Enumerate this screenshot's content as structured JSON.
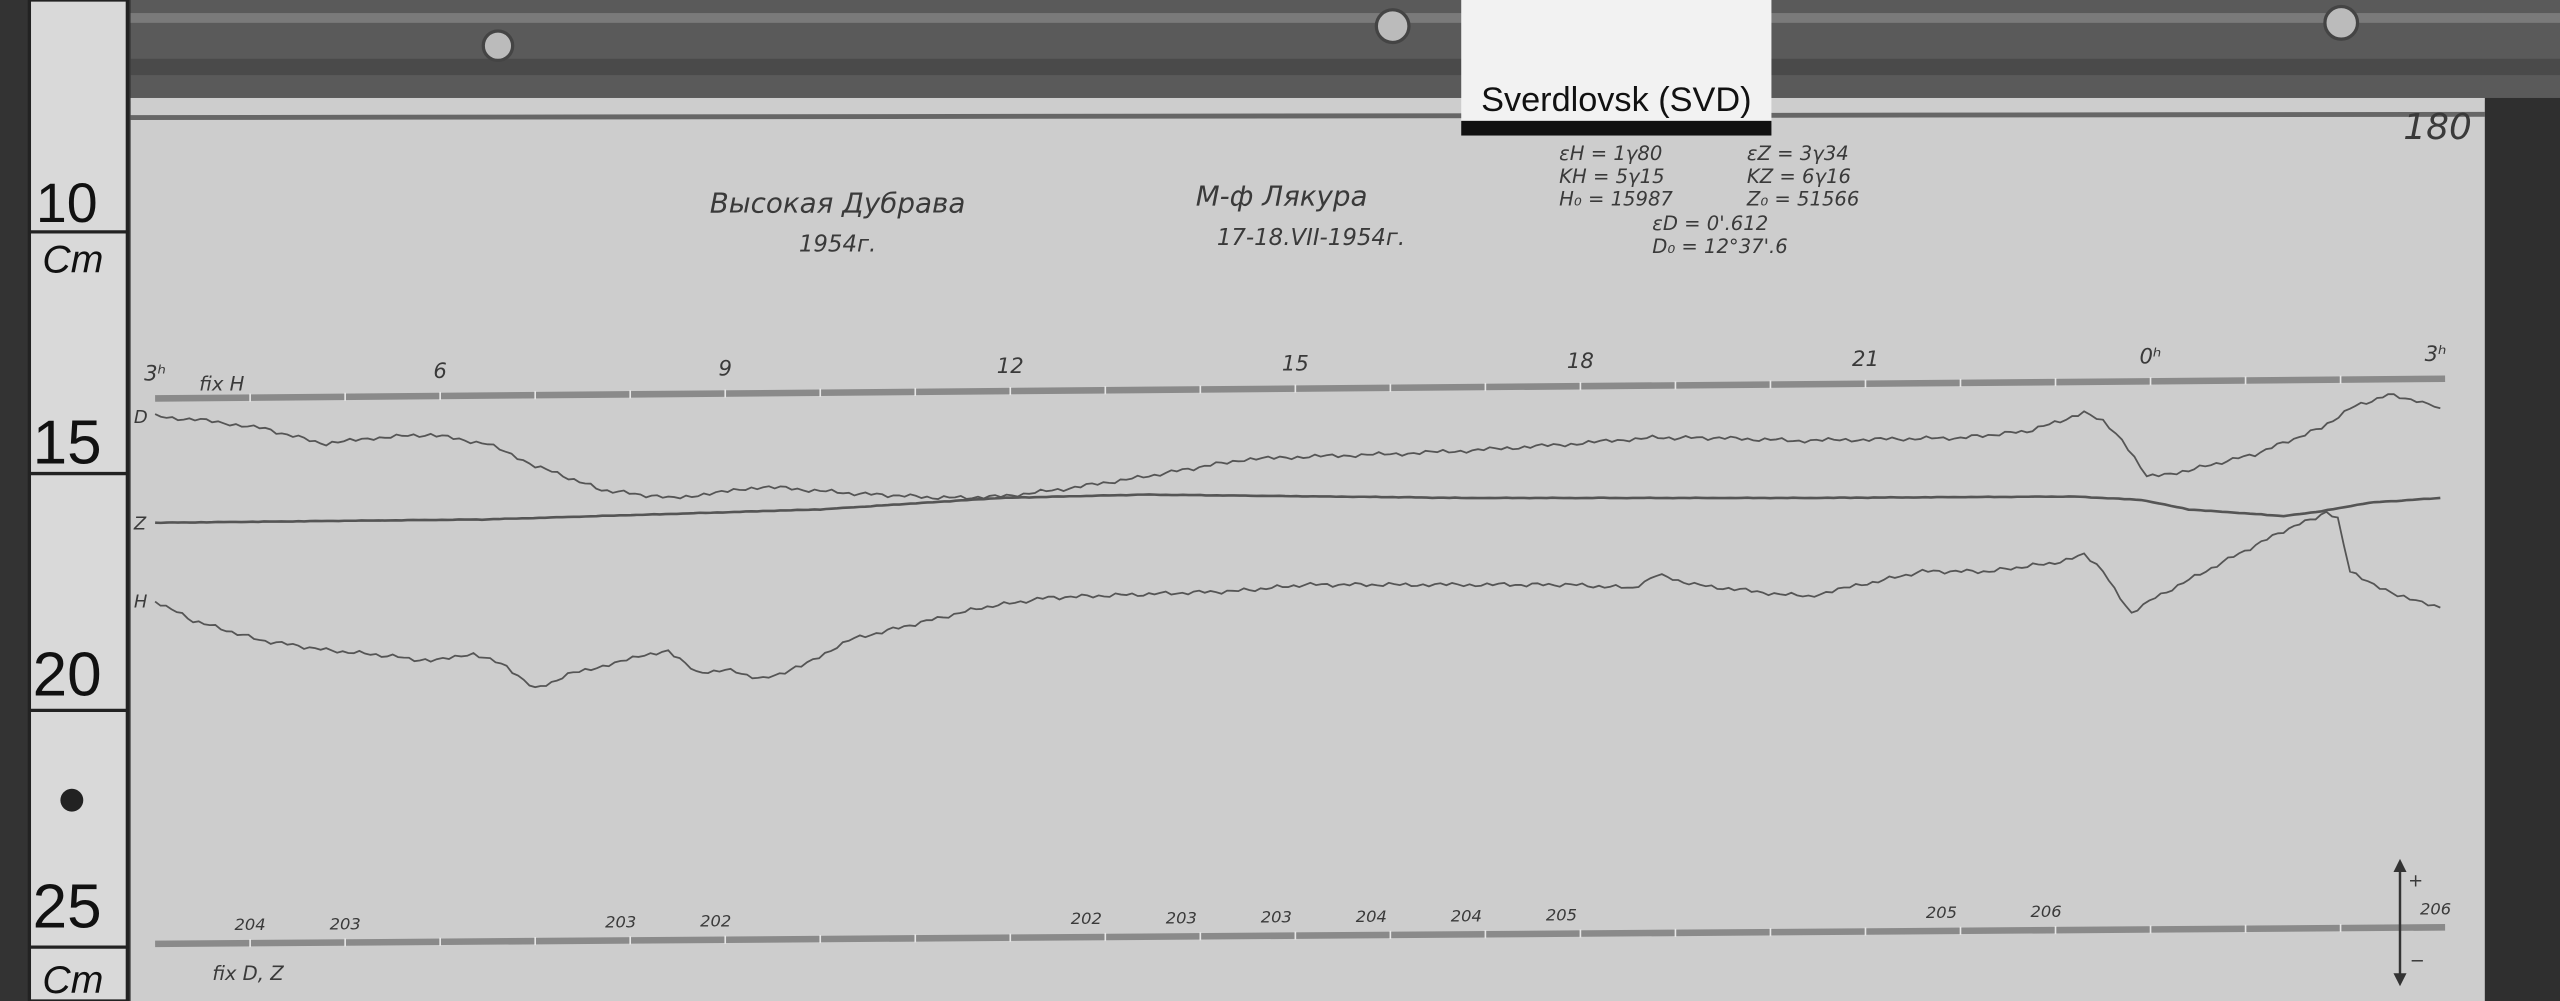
{
  "station_label": "Sverdlovsk (SVD)",
  "sheet_number": "180",
  "header": {
    "station_name": "Высокая Дубрава",
    "station_year": "1954г.",
    "instrument": "М-ф Лякура",
    "date": "17-18.VII-1954г."
  },
  "constants": {
    "eps_h": "εH = 1γ80",
    "k_h": "KH = 5γ15",
    "h0": "H₀ = 15987",
    "eps_z": "εZ = 3γ34",
    "k_z": "KZ = 6γ16",
    "z0": "Z₀ = 51566",
    "eps_d": "εD = 0'.612",
    "d0": "D₀ = 12°37'.6"
  },
  "ruler": {
    "labels": [
      "10",
      "15",
      "20",
      "25"
    ],
    "unit_top": "Cm",
    "unit_bottom": "Cm"
  },
  "baseline_notes": {
    "fix_h": "fix H",
    "fix_dz": "fix D, Z",
    "plus": "+",
    "minus": "−"
  },
  "chart_data": {
    "type": "line",
    "title": "",
    "xlabel": "",
    "ylabel": "Cm",
    "x_unit": "hour",
    "xlim": [
      3,
      27
    ],
    "ylim": [
      10,
      25
    ],
    "grid": false,
    "x_tick_labels": [
      "3ʰ",
      "6",
      "9",
      "12",
      "15",
      "18",
      "21",
      "0ʰ",
      "3ʰ"
    ],
    "x_tick_values": [
      3,
      6,
      9,
      12,
      15,
      18,
      21,
      24,
      27
    ],
    "bottom_labels": [
      {
        "hour": 4.0,
        "text": "204"
      },
      {
        "hour": 5.0,
        "text": "203"
      },
      {
        "hour": 7.9,
        "text": "203"
      },
      {
        "hour": 8.9,
        "text": "202"
      },
      {
        "hour": 12.8,
        "text": "202"
      },
      {
        "hour": 13.8,
        "text": "203"
      },
      {
        "hour": 14.8,
        "text": "203"
      },
      {
        "hour": 15.8,
        "text": "204"
      },
      {
        "hour": 16.8,
        "text": "204"
      },
      {
        "hour": 17.8,
        "text": "205"
      },
      {
        "hour": 21.8,
        "text": "205"
      },
      {
        "hour": 22.9,
        "text": "206"
      },
      {
        "hour": 27.0,
        "text": "206"
      }
    ],
    "series": [
      {
        "name": "D",
        "color": "#555555",
        "points": [
          [
            3.0,
            13.87
          ],
          [
            3.6,
            13.97
          ],
          [
            4.1,
            14.11
          ],
          [
            4.8,
            14.45
          ],
          [
            5.3,
            14.32
          ],
          [
            5.9,
            14.25
          ],
          [
            6.5,
            14.45
          ],
          [
            7.0,
            14.9
          ],
          [
            7.7,
            15.41
          ],
          [
            8.4,
            15.58
          ],
          [
            8.9,
            15.48
          ],
          [
            9.4,
            15.34
          ],
          [
            10.3,
            15.48
          ],
          [
            11.3,
            15.58
          ],
          [
            11.9,
            15.55
          ],
          [
            12.5,
            15.41
          ],
          [
            13.4,
            15.14
          ],
          [
            14.4,
            14.79
          ],
          [
            14.9,
            14.73
          ],
          [
            16.0,
            14.66
          ],
          [
            16.8,
            14.59
          ],
          [
            17.9,
            14.45
          ],
          [
            18.7,
            14.32
          ],
          [
            19.4,
            14.32
          ],
          [
            20.3,
            14.38
          ],
          [
            21.1,
            14.35
          ],
          [
            22.0,
            14.32
          ],
          [
            22.7,
            14.18
          ],
          [
            23.05,
            13.97
          ],
          [
            23.3,
            13.77
          ],
          [
            23.5,
            13.97
          ],
          [
            23.7,
            14.38
          ],
          [
            23.96,
            15.14
          ],
          [
            24.4,
            15.0
          ],
          [
            25.1,
            14.66
          ],
          [
            25.8,
            14.11
          ],
          [
            26.1,
            13.7
          ],
          [
            26.5,
            13.42
          ],
          [
            26.8,
            13.53
          ],
          [
            27.05,
            13.7
          ]
        ]
      },
      {
        "name": "Z",
        "color": "#555555",
        "points": [
          [
            3.0,
            16.1
          ],
          [
            6.5,
            16.03
          ],
          [
            10.0,
            15.82
          ],
          [
            11.9,
            15.58
          ],
          [
            13.4,
            15.51
          ],
          [
            16.8,
            15.58
          ],
          [
            20.3,
            15.58
          ],
          [
            23.2,
            15.55
          ],
          [
            23.9,
            15.62
          ],
          [
            24.4,
            15.82
          ],
          [
            25.4,
            15.96
          ],
          [
            25.8,
            15.86
          ],
          [
            26.3,
            15.68
          ],
          [
            27.05,
            15.58
          ]
        ]
      },
      {
        "name": "H",
        "color": "#555555",
        "points": [
          [
            3.0,
            17.74
          ],
          [
            3.4,
            18.15
          ],
          [
            4.1,
            18.56
          ],
          [
            4.8,
            18.77
          ],
          [
            5.5,
            18.9
          ],
          [
            5.9,
            19.01
          ],
          [
            6.35,
            18.84
          ],
          [
            6.7,
            19.11
          ],
          [
            7.0,
            19.59
          ],
          [
            7.4,
            19.25
          ],
          [
            7.9,
            19.01
          ],
          [
            8.4,
            18.77
          ],
          [
            8.7,
            19.25
          ],
          [
            9.0,
            19.18
          ],
          [
            9.4,
            19.38
          ],
          [
            9.8,
            19.11
          ],
          [
            10.3,
            18.56
          ],
          [
            11.0,
            18.22
          ],
          [
            11.7,
            17.88
          ],
          [
            12.4,
            17.67
          ],
          [
            13.4,
            17.6
          ],
          [
            14.4,
            17.53
          ],
          [
            15.1,
            17.4
          ],
          [
            16.1,
            17.4
          ],
          [
            17.2,
            17.4
          ],
          [
            17.9,
            17.4
          ],
          [
            18.55,
            17.47
          ],
          [
            18.8,
            17.19
          ],
          [
            19.2,
            17.4
          ],
          [
            20.1,
            17.6
          ],
          [
            20.4,
            17.64
          ],
          [
            20.96,
            17.4
          ],
          [
            21.6,
            17.12
          ],
          [
            22.3,
            17.12
          ],
          [
            23.05,
            16.92
          ],
          [
            23.3,
            16.78
          ],
          [
            23.5,
            17.12
          ],
          [
            23.8,
            18.01
          ],
          [
            24.05,
            17.67
          ],
          [
            24.7,
            16.99
          ],
          [
            25.4,
            16.27
          ],
          [
            25.85,
            15.89
          ],
          [
            25.97,
            16.03
          ],
          [
            26.1,
            17.12
          ],
          [
            26.6,
            17.64
          ],
          [
            27.05,
            17.88
          ]
        ]
      }
    ]
  }
}
